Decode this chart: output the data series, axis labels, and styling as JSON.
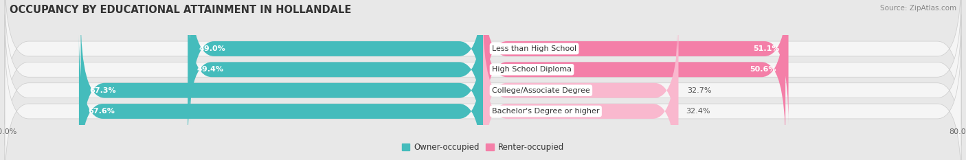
{
  "title": "OCCUPANCY BY EDUCATIONAL ATTAINMENT IN HOLLANDALE",
  "source": "Source: ZipAtlas.com",
  "categories": [
    "Less than High School",
    "High School Diploma",
    "College/Associate Degree",
    "Bachelor's Degree or higher"
  ],
  "owner_values": [
    49.0,
    49.4,
    67.3,
    67.6
  ],
  "renter_values": [
    51.1,
    50.6,
    32.7,
    32.4
  ],
  "owner_color": "#45BCBC",
  "renter_color": "#F47FA8",
  "renter_color_light": "#F9B8CE",
  "background_color": "#e8e8e8",
  "bar_background": "#f5f5f5",
  "bar_height": 0.72,
  "bar_gap": 0.06,
  "xlim_left": -80.0,
  "xlim_right": 80.0,
  "title_fontsize": 10.5,
  "label_fontsize": 8.0,
  "value_fontsize": 8.0,
  "tick_fontsize": 8.0,
  "legend_fontsize": 8.5,
  "source_fontsize": 7.5,
  "rounding_size": 8
}
